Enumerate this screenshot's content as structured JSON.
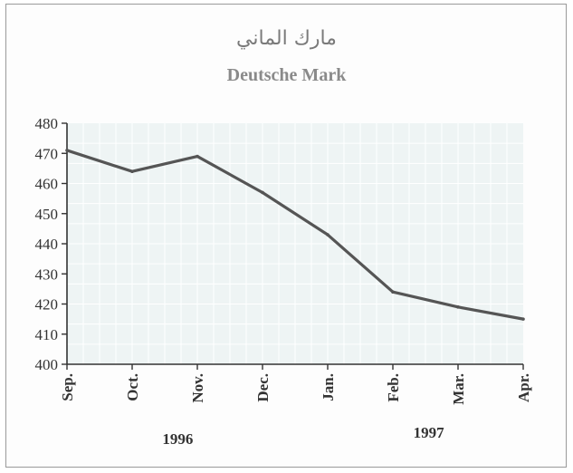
{
  "chart_data": {
    "type": "line",
    "title": "مارك الماني",
    "subtitle": "Deutsche Mark",
    "categories": [
      "Sep.",
      "Oct.",
      "Nov.",
      "Dec.",
      "Jan.",
      "Feb.",
      "Mar.",
      "Apr."
    ],
    "series": [
      {
        "values": [
          471,
          464,
          469,
          457,
          443,
          424,
          419,
          415
        ]
      }
    ],
    "year_labels": [
      "1996",
      "1997"
    ],
    "ylim": [
      400,
      480
    ],
    "yticks": [
      400,
      410,
      420,
      430,
      440,
      450,
      460,
      470,
      480
    ],
    "grid": true,
    "colors": {
      "line": "#555555",
      "plot_bg": "#eef4f4",
      "grid": "#ffffff"
    }
  }
}
